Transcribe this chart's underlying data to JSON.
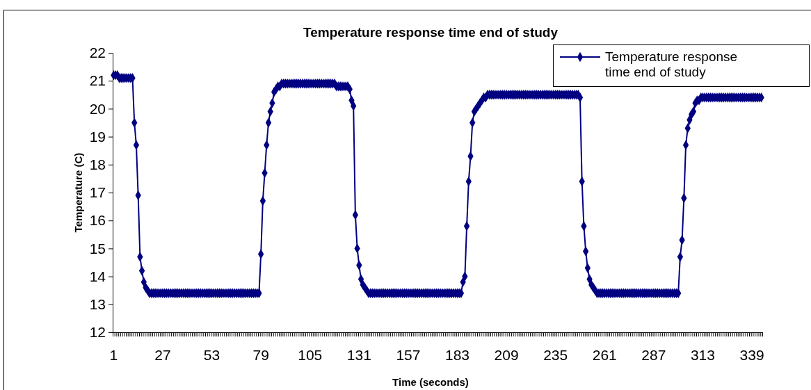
{
  "chart_data": {
    "type": "line",
    "title": "Temperature response time end of study",
    "xlabel": "Time (seconds)",
    "ylabel": "Temperature (C)",
    "categories": [
      "1",
      null,
      null,
      null,
      null,
      null,
      null,
      null,
      null,
      null,
      null,
      null,
      null,
      null,
      null,
      null,
      null,
      null,
      null,
      null,
      null,
      null,
      null,
      null,
      null,
      null,
      "27",
      null,
      null,
      null,
      null,
      null,
      null,
      null,
      null,
      null,
      null,
      null,
      null,
      null,
      null,
      null,
      null,
      null,
      null,
      null,
      null,
      null,
      null,
      null,
      null,
      null,
      "53",
      null,
      null,
      null,
      null,
      null,
      null,
      null,
      null,
      null,
      null,
      null,
      null,
      null,
      null,
      null,
      null,
      null,
      null,
      null,
      null,
      null,
      null,
      null,
      null,
      null,
      "79",
      null,
      null,
      null,
      null,
      null,
      null,
      null,
      null,
      null,
      null,
      null,
      null,
      null,
      null,
      null,
      null,
      null,
      null,
      null,
      null,
      null,
      null,
      null,
      null,
      null,
      "105",
      null,
      null,
      null,
      null,
      null,
      null,
      null,
      null,
      null,
      null,
      null,
      null,
      null,
      null,
      null,
      null,
      null,
      null,
      null,
      null,
      null,
      null,
      null,
      null,
      null,
      "131",
      null,
      null,
      null,
      null,
      null,
      null,
      null,
      null,
      null,
      null,
      null,
      null,
      null,
      null,
      null,
      null,
      null,
      null,
      null,
      null,
      null,
      null,
      null,
      null,
      null,
      "157",
      null,
      null,
      null,
      null,
      null,
      null,
      null,
      null,
      null,
      null,
      null,
      null,
      null,
      null,
      null,
      null,
      null,
      null,
      null,
      null,
      null,
      null,
      null,
      null,
      null,
      "183",
      null,
      null,
      null,
      null,
      null,
      null,
      null,
      null,
      null,
      null,
      null,
      null,
      null,
      null,
      null,
      null,
      null,
      null,
      null,
      null,
      null,
      null,
      null,
      null,
      null,
      "209",
      null,
      null,
      null,
      null,
      null,
      null,
      null,
      null,
      null,
      null,
      null,
      null,
      null,
      null,
      null,
      null,
      null,
      null,
      null,
      null,
      null,
      null,
      null,
      null,
      null,
      "235",
      null,
      null,
      null,
      null,
      null,
      null,
      null,
      null,
      null,
      null,
      null,
      null,
      null,
      null,
      null,
      null,
      null,
      null,
      null,
      null,
      null,
      null,
      null,
      null,
      null,
      "261",
      null,
      null,
      null,
      null,
      null,
      null,
      null,
      null,
      null,
      null,
      null,
      null,
      null,
      null,
      null,
      null,
      null,
      null,
      null,
      null,
      null,
      null,
      null,
      null,
      null,
      "287",
      null,
      null,
      null,
      null,
      null,
      null,
      null,
      null,
      null,
      null,
      null,
      null,
      null,
      null,
      null,
      null,
      null,
      null,
      null,
      null,
      null,
      null,
      null,
      null,
      null,
      "313",
      null,
      null,
      null,
      null,
      null,
      null,
      null,
      null,
      null,
      null,
      null,
      null,
      null,
      null,
      null,
      null,
      null,
      null,
      null,
      null,
      null,
      null,
      null,
      null,
      null,
      "339",
      null,
      null,
      null,
      null,
      null
    ],
    "series": [
      {
        "name": "Temperature response time end of study",
        "color": "#000080",
        "values": [
          21.2,
          21.2,
          21.2,
          21.1,
          21.1,
          21.1,
          21.1,
          21.1,
          21.1,
          21.1,
          21.1,
          19.5,
          18.7,
          16.9,
          14.7,
          14.2,
          13.8,
          13.6,
          13.5,
          13.4,
          13.4,
          13.4,
          13.4,
          13.4,
          13.4,
          13.4,
          13.4,
          13.4,
          13.4,
          13.4,
          13.4,
          13.4,
          13.4,
          13.4,
          13.4,
          13.4,
          13.4,
          13.4,
          13.4,
          13.4,
          13.4,
          13.4,
          13.4,
          13.4,
          13.4,
          13.4,
          13.4,
          13.4,
          13.4,
          13.4,
          13.4,
          13.4,
          13.4,
          13.4,
          13.4,
          13.4,
          13.4,
          13.4,
          13.4,
          13.4,
          13.4,
          13.4,
          13.4,
          13.4,
          13.4,
          13.4,
          13.4,
          13.4,
          13.4,
          13.4,
          13.4,
          13.4,
          13.4,
          13.4,
          13.4,
          13.4,
          13.4,
          13.4,
          14.8,
          16.7,
          17.7,
          18.7,
          19.5,
          19.9,
          20.2,
          20.6,
          20.7,
          20.8,
          20.8,
          20.9,
          20.9,
          20.9,
          20.9,
          20.9,
          20.9,
          20.9,
          20.9,
          20.9,
          20.9,
          20.9,
          20.9,
          20.9,
          20.9,
          20.9,
          20.9,
          20.9,
          20.9,
          20.9,
          20.9,
          20.9,
          20.9,
          20.9,
          20.9,
          20.9,
          20.9,
          20.9,
          20.9,
          20.9,
          20.8,
          20.8,
          20.8,
          20.8,
          20.8,
          20.8,
          20.8,
          20.7,
          20.3,
          20.1,
          16.2,
          15.0,
          14.4,
          13.9,
          13.7,
          13.6,
          13.5,
          13.4,
          13.4,
          13.4,
          13.4,
          13.4,
          13.4,
          13.4,
          13.4,
          13.4,
          13.4,
          13.4,
          13.4,
          13.4,
          13.4,
          13.4,
          13.4,
          13.4,
          13.4,
          13.4,
          13.4,
          13.4,
          13.4,
          13.4,
          13.4,
          13.4,
          13.4,
          13.4,
          13.4,
          13.4,
          13.4,
          13.4,
          13.4,
          13.4,
          13.4,
          13.4,
          13.4,
          13.4,
          13.4,
          13.4,
          13.4,
          13.4,
          13.4,
          13.4,
          13.4,
          13.4,
          13.4,
          13.4,
          13.4,
          13.4,
          13.4,
          13.8,
          14.0,
          15.8,
          17.4,
          18.3,
          19.5,
          19.9,
          20.0,
          20.1,
          20.2,
          20.3,
          20.4,
          20.4,
          20.5,
          20.5,
          20.5,
          20.5,
          20.5,
          20.5,
          20.5,
          20.5,
          20.5,
          20.5,
          20.5,
          20.5,
          20.5,
          20.5,
          20.5,
          20.5,
          20.5,
          20.5,
          20.5,
          20.5,
          20.5,
          20.5,
          20.5,
          20.5,
          20.5,
          20.5,
          20.5,
          20.5,
          20.5,
          20.5,
          20.5,
          20.5,
          20.5,
          20.5,
          20.5,
          20.5,
          20.5,
          20.5,
          20.5,
          20.5,
          20.5,
          20.5,
          20.5,
          20.5,
          20.5,
          20.5,
          20.5,
          20.5,
          20.5,
          20.4,
          17.4,
          15.8,
          14.9,
          14.3,
          13.9,
          13.7,
          13.6,
          13.5,
          13.4,
          13.4,
          13.4,
          13.4,
          13.4,
          13.4,
          13.4,
          13.4,
          13.4,
          13.4,
          13.4,
          13.4,
          13.4,
          13.4,
          13.4,
          13.4,
          13.4,
          13.4,
          13.4,
          13.4,
          13.4,
          13.4,
          13.4,
          13.4,
          13.4,
          13.4,
          13.4,
          13.4,
          13.4,
          13.4,
          13.4,
          13.4,
          13.4,
          13.4,
          13.4,
          13.4,
          13.4,
          13.4,
          13.4,
          13.4,
          13.4,
          13.4,
          13.4,
          13.4,
          14.7,
          15.3,
          16.8,
          18.7,
          19.3,
          19.6,
          19.8,
          19.9,
          20.2,
          20.3,
          20.3,
          20.4,
          20.4,
          20.4,
          20.4,
          20.4,
          20.4,
          20.4,
          20.4,
          20.4,
          20.4,
          20.4,
          20.4,
          20.4,
          20.4,
          20.4,
          20.4,
          20.4,
          20.4,
          20.4,
          20.4,
          20.4,
          20.4,
          20.4,
          20.4,
          20.4,
          20.4,
          20.4,
          20.4,
          20.4,
          20.4,
          20.4,
          20.4,
          20.4
        ]
      }
    ],
    "ylim": [
      12,
      22
    ],
    "yticks": [
      12,
      13,
      14,
      15,
      16,
      17,
      18,
      19,
      20,
      21,
      22
    ],
    "grid": false,
    "legend": "top right",
    "marker": "diamond",
    "line_style": "solid"
  }
}
